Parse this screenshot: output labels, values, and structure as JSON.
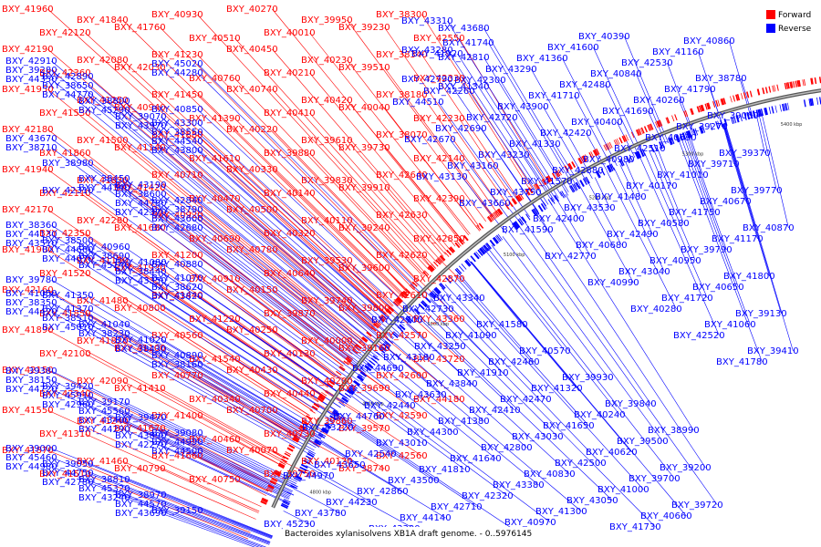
{
  "title": "Bacteroides xylanisolvens XB1A draft genome. - 0..5976145",
  "legend": [
    {
      "label": "Forward",
      "color": "#ff0000"
    },
    {
      "label": "Reverse",
      "color": "#0000ff"
    }
  ],
  "colors": {
    "forward": "#ff0000",
    "reverse": "#0000ff",
    "backbone": "#888888"
  },
  "ticks": [
    "4800 kbp",
    "4900 kbp",
    "5000 kbp",
    "5100 kbp",
    "5200 kbp",
    "5300 kbp",
    "5400 kbp",
    "5500 kbp"
  ],
  "forward_labels": [
    "BXY_41960",
    "BXY_42190",
    "BXY_41950",
    "BXY_42180",
    "BXY_41940",
    "BXY_42170",
    "BXY_41900",
    "BXY_42160",
    "BXY_41890",
    "BXY_42150",
    "BXY_41550",
    "BXY_41870",
    "BXY_42120",
    "BXY_42360",
    "BXY_41530",
    "BXY_41860",
    "BXY_42110",
    "BXY_42350",
    "BXY_41520",
    "BXY_41850",
    "BXY_42100",
    "BXY_42340",
    "BXY_41310",
    "BXY_41510",
    "BXY_41840",
    "BXY_42080",
    "BXY_41250",
    "BXY_41500",
    "BXY_41830",
    "BXY_42280",
    "BXY_41150",
    "BXY_41480",
    "BXY_41820",
    "BXY_42090",
    "BXY_41240",
    "BXY_41460",
    "BXY_41760",
    "BXY_42030",
    "BXY_40940",
    "BXY_41140",
    "BXY_41420",
    "BXY_41680",
    "BXY_41930",
    "BXY_40800",
    "BXY_41100",
    "BXY_41410",
    "BXY_41670",
    "BXY_40790",
    "BXY_40930",
    "BXY_41230",
    "BXY_41450",
    "BXY_41880",
    "BXY_40710",
    "BXY_40920",
    "BXY_41200",
    "BXY_41440",
    "BXY_40560",
    "BXY_40770",
    "BXY_41400",
    "BXY_41660",
    "BXY_40510",
    "BXY_40760",
    "BXY_41390",
    "BXY_41610",
    "BXY_40470",
    "BXY_40690",
    "BXY_40910",
    "BXY_41220",
    "BXY_41540",
    "BXY_40340",
    "BXY_40460",
    "BXY_40750",
    "BXY_40270",
    "BXY_40450",
    "BXY_40740",
    "BXY_40220",
    "BXY_40330",
    "BXY_40500",
    "BXY_40780",
    "BXY_40150",
    "BXY_40250",
    "BXY_40430",
    "BXY_40700",
    "BXY_40070",
    "BXY_40010",
    "BXY_40210",
    "BXY_40410",
    "BXY_39880",
    "BXY_40140",
    "BXY_40320",
    "BXY_40640",
    "BXY_39870",
    "BXY_40130",
    "BXY_40440",
    "BXY_40730",
    "BXY_39750",
    "BXY_39950",
    "BXY_40230",
    "BXY_40420",
    "BXY_39610",
    "BXY_39830",
    "BXY_40110",
    "BXY_39530",
    "BXY_39740",
    "BXY_40000",
    "BXY_40200",
    "BXY_39860",
    "BXY_40120",
    "BXY_39230",
    "BXY_39510",
    "BXY_40040",
    "BXY_39730",
    "BXY_39910",
    "BXY_39240",
    "BXY_39600",
    "BXY_39800",
    "BXY_39160",
    "BXY_39690",
    "BXY_39570",
    "BXY_38740",
    "BXY_38300",
    "BXY_38340",
    "BXY_38180",
    "BXY_38070",
    "BXY_42640",
    "BXY_42630",
    "BXY_42620",
    "BXY_42610",
    "BXY_42570",
    "BXY_42600",
    "BXY_42590",
    "BXY_42560",
    "BXY_42550",
    "BXY_42330",
    "BXY_42230",
    "BXY_42140",
    "BXY_42390",
    "BXY_42850",
    "BXY_42870",
    "BXY_43360",
    "BXY_43720",
    "BXY_44180"
  ],
  "reverse_labels": [
    "BXY_42910",
    "BXY_42890",
    "BXY_43310",
    "BXY_43680",
    "BXY_43300",
    "BXY_43670",
    "BXY_43280",
    "BXY_42810",
    "BXY_43190",
    "BXY_42840",
    "BXY_42790",
    "BXY_41340",
    "BXY_40960",
    "BXY_41080",
    "BXY_41070",
    "BXY_41050",
    "BXY_41370",
    "BXY_41040",
    "BXY_41020",
    "BXY_40890",
    "BXY_39380",
    "BXY_39420",
    "BXY_39170",
    "BXY_39470",
    "BXY_39080",
    "BXY_39000",
    "BXY_39050",
    "BXY_38810",
    "BXY_38970",
    "BXY_39150",
    "BXY_39280",
    "BXY_38650",
    "BXY_38800",
    "BXY_39070",
    "BXY_38550",
    "BXY_38710",
    "BXY_38980",
    "BXY_38450",
    "BXY_38600",
    "BXY_38790",
    "BXY_38360",
    "BXY_38500",
    "BXY_38690",
    "BXY_38440",
    "BXY_38620",
    "BXY_38350",
    "BXY_38510",
    "BXY_38230",
    "BXY_38430",
    "BXY_38160",
    "BXY_38150",
    "BXY_45910",
    "BXY_45560",
    "BXY_45230",
    "BXY_44990",
    "BXY_45460",
    "BXY_44750",
    "BXY_45320",
    "BXY_44570",
    "BXY_45020",
    "BXY_44350",
    "BXY_44770",
    "BXY_45290",
    "BXY_43970",
    "BXY_44540",
    "BXY_44970",
    "BXY_43780",
    "BXY_44340",
    "BXY_44780",
    "BXY_43600",
    "BXY_44130",
    "BXY_44660",
    "BXY_45140",
    "BXY_43350",
    "BXY_43820",
    "BXY_44420",
    "BXY_45010",
    "BXY_43220",
    "BXY_43650",
    "BXY_44230",
    "BXY_44720",
    "BXY_42960",
    "BXY_43400",
    "BXY_43890",
    "BXY_44500",
    "BXY_44980",
    "BXY_42780",
    "BXY_43240",
    "BXY_43690",
    "BXY_44280",
    "BXY_44760",
    "BXY_42540",
    "BXY_42860",
    "BXY_43330",
    "BXY_43800",
    "BXY_44510",
    "BXY_42670",
    "BXY_43130",
    "BXY_42370",
    "BXY_42680",
    "BXY_43510",
    "BXY_44070",
    "BXY_44690",
    "BXY_42440",
    "BXY_43010",
    "BXY_43500",
    "BXY_44140",
    "BXY_41920",
    "BXY_42260",
    "BXY_42690",
    "BXY_43160",
    "BXY_43660",
    "BXY_44290",
    "BXY_42270",
    "BXY_42700",
    "BXY_43180",
    "BXY_43630",
    "BXY_44300",
    "BXY_41810",
    "BXY_42710",
    "BXY_41740",
    "BXY_42300",
    "BXY_42720",
    "BXY_43230",
    "BXY_43750",
    "BXY_41590",
    "BXY_42310",
    "BXY_42730",
    "BXY_43250",
    "BXY_43840",
    "BXY_41380",
    "BXY_41640",
    "BXY_42320",
    "BXY_42750",
    "BXY_43290",
    "BXY_43900",
    "BXY_41330",
    "BXY_41570",
    "BXY_42400",
    "BXY_42770",
    "BXY_43340",
    "BXY_41090",
    "BXY_41910",
    "BXY_42410",
    "BXY_42800",
    "BXY_43380",
    "BXY_40970",
    "BXY_41360",
    "BXY_41710",
    "BXY_42420",
    "BXY_42880",
    "BXY_43530",
    "BXY_40680",
    "BXY_40990",
    "BXY_41580",
    "BXY_42460",
    "BXY_42470",
    "BXY_43030",
    "BXY_40830",
    "BXY_41300",
    "BXY_41600",
    "BXY_42480",
    "BXY_40400",
    "BXY_40980",
    "BXY_41480",
    "BXY_42490",
    "BXY_43040",
    "BXY_40280",
    "BXY_40570",
    "BXY_41320",
    "BXY_41650",
    "BXY_42500",
    "BXY_43050",
    "BXY_40390",
    "BXY_40840",
    "BXY_41690",
    "BXY_42510",
    "BXY_40170",
    "BXY_40580",
    "BXY_40950",
    "BXY_41720",
    "BXY_42520",
    "BXY_39930",
    "BXY_40240",
    "BXY_40620",
    "BXY_41000",
    "BXY_41730",
    "BXY_42530",
    "BXY_40260",
    "BXY_40630",
    "BXY_41010",
    "BXY_41750",
    "BXY_39790",
    "BXY_40650",
    "BXY_41060",
    "BXY_41780",
    "BXY_39840",
    "BXY_39500",
    "BXY_39700",
    "BXY_40660",
    "BXY_41160",
    "BXY_41790",
    "BXY_39270",
    "BXY_39710",
    "BXY_40670",
    "BXY_41170",
    "BXY_41800",
    "BXY_39130",
    "BXY_39410",
    "BXY_40850",
    "BXY_38990",
    "BXY_39200",
    "BXY_39720",
    "BXY_40860",
    "BXY_38780",
    "BXY_39060",
    "BXY_39370",
    "BXY_39770",
    "BXY_40870",
    "BXY_40880",
    "BXY_39780",
    "BXY_41350"
  ]
}
